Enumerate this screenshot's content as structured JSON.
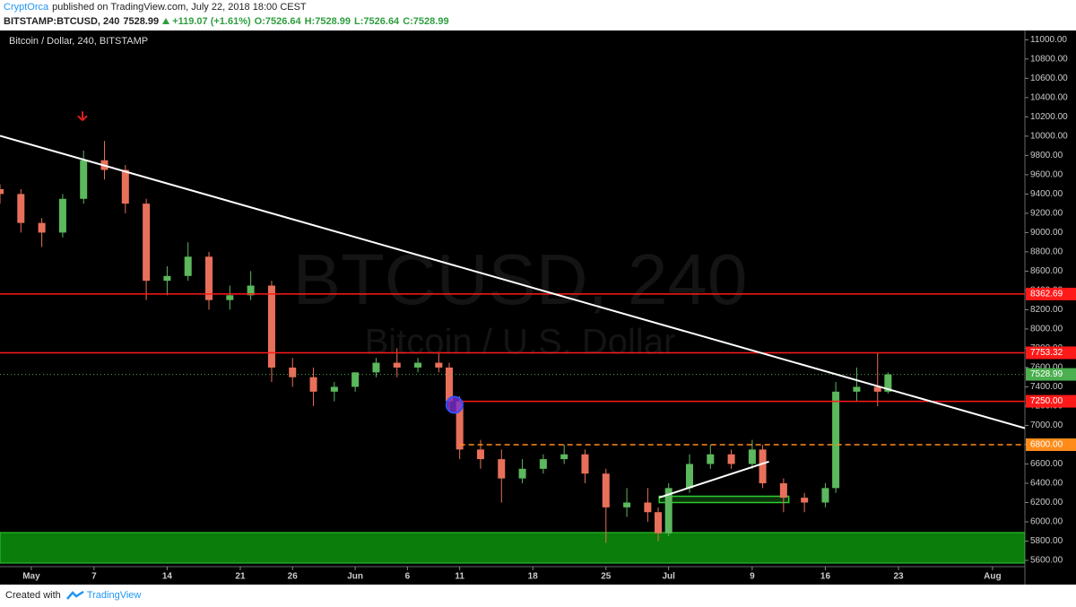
{
  "header": {
    "publisher": "CryptOrca",
    "published": "published on TradingView.com, July 22, 2018 18:00 CEST",
    "symbol": "BITSTAMP:BTCUSD, 240",
    "last": "7528.99",
    "change": "+119.07 (+1.61%)",
    "open": "O:7526.64",
    "high": "H:7528.99",
    "low": "L:7526.64",
    "close": "C:7528.99"
  },
  "footer": {
    "created": "Created with",
    "brand": "TradingView"
  },
  "chart_data": {
    "type": "candlestick",
    "legend_text": "Bitcoin / Dollar, 240, BITSTAMP",
    "watermark": {
      "symbol": "BTCUSD, 240",
      "description": "Bitcoin / U.S. Dollar"
    },
    "up_color": "#5cb85c",
    "down_color": "#e8705a",
    "grid": false,
    "xlim": [
      -3,
      95.1
    ],
    "xticks": [
      {
        "value": 0,
        "label": "May"
      },
      {
        "value": 6,
        "label": "7"
      },
      {
        "value": 13,
        "label": "14"
      },
      {
        "value": 20,
        "label": "21"
      },
      {
        "value": 25,
        "label": "26"
      },
      {
        "value": 31,
        "label": "Jun"
      },
      {
        "value": 36,
        "label": "6"
      },
      {
        "value": 41,
        "label": "11"
      },
      {
        "value": 48,
        "label": "18"
      },
      {
        "value": 55,
        "label": "25"
      },
      {
        "value": 61,
        "label": "Jul"
      },
      {
        "value": 69,
        "label": "9"
      },
      {
        "value": 76,
        "label": "16"
      },
      {
        "value": 83,
        "label": "23"
      },
      {
        "value": 92,
        "label": "Aug"
      }
    ],
    "ylim": [
      5535,
      11096
    ],
    "yticks": [
      {
        "value": 5600,
        "label": "5600.00"
      },
      {
        "value": 5800,
        "label": "5800.00"
      },
      {
        "value": 6000,
        "label": "6000.00"
      },
      {
        "value": 6200,
        "label": "6200.00"
      },
      {
        "value": 6400,
        "label": "6400.00"
      },
      {
        "value": 6600,
        "label": "6600.00"
      },
      {
        "value": 6800,
        "label": "6800.00"
      },
      {
        "value": 7000,
        "label": "7000.00"
      },
      {
        "value": 7200,
        "label": "7200.00"
      },
      {
        "value": 7400,
        "label": "7400.00"
      },
      {
        "value": 7600,
        "label": "7600.00"
      },
      {
        "value": 7800,
        "label": "7800.00"
      },
      {
        "value": 8000,
        "label": "8000.00"
      },
      {
        "value": 8200,
        "label": "8200.00"
      },
      {
        "value": 8400,
        "label": "8400.00"
      },
      {
        "value": 8600,
        "label": "8600.00"
      },
      {
        "value": 8800,
        "label": "8800.00"
      },
      {
        "value": 9000,
        "label": "9000.00"
      },
      {
        "value": 9200,
        "label": "9200.00"
      },
      {
        "value": 9400,
        "label": "9400.00"
      },
      {
        "value": 9600,
        "label": "9600.00"
      },
      {
        "value": 9800,
        "label": "9800.00"
      },
      {
        "value": 10000,
        "label": "10000.00"
      },
      {
        "value": 10200,
        "label": "10200.00"
      },
      {
        "value": 10400,
        "label": "10400.00"
      },
      {
        "value": 10600,
        "label": "10600.00"
      },
      {
        "value": 10800,
        "label": "10800.00"
      },
      {
        "value": 11000,
        "label": "11000.00"
      }
    ],
    "x": [
      -3,
      -1,
      1,
      3,
      5,
      7,
      9,
      11,
      13,
      15,
      17,
      19,
      21,
      23,
      25,
      27,
      29,
      31,
      33,
      35,
      37,
      39,
      40,
      41,
      43,
      45,
      47,
      49,
      51,
      53,
      55,
      57,
      59,
      60,
      61,
      63,
      65,
      67,
      69,
      70,
      72,
      74,
      76,
      77,
      79,
      81,
      82
    ],
    "open": [
      9450,
      9400,
      9100,
      9000,
      9350,
      9750,
      9650,
      9300,
      8500,
      8550,
      8750,
      8300,
      8350,
      8450,
      7600,
      7500,
      7350,
      7400,
      7550,
      7650,
      7600,
      7650,
      7600,
      7250,
      6750,
      6650,
      6450,
      6550,
      6650,
      6700,
      6500,
      6150,
      6200,
      6100,
      5880,
      6350,
      6600,
      6700,
      6600,
      6750,
      6400,
      6250,
      6200,
      6350,
      7350,
      7400,
      7350
    ],
    "high": [
      9500,
      9450,
      9150,
      9400,
      9850,
      9950,
      9700,
      9350,
      8650,
      8900,
      8800,
      8450,
      8600,
      8500,
      7700,
      7600,
      7450,
      7550,
      7700,
      7800,
      7700,
      7750,
      7650,
      7300,
      6850,
      6750,
      6650,
      6700,
      6800,
      6750,
      6550,
      6350,
      6350,
      6150,
      6400,
      6700,
      6800,
      6750,
      6850,
      6800,
      6450,
      6300,
      6400,
      7450,
      7600,
      7750,
      7550
    ],
    "low": [
      9300,
      9000,
      8850,
      8950,
      9300,
      9550,
      9200,
      8300,
      8350,
      8500,
      8200,
      8200,
      8300,
      7450,
      7400,
      7200,
      7250,
      7350,
      7500,
      7500,
      7550,
      7550,
      7150,
      6650,
      6550,
      6200,
      6400,
      6500,
      6600,
      6400,
      5780,
      6050,
      6000,
      5800,
      5850,
      6300,
      6550,
      6550,
      6550,
      6350,
      6100,
      6100,
      6150,
      6300,
      7250,
      7200,
      7330
    ],
    "close": [
      9400,
      9100,
      9000,
      9350,
      9750,
      9650,
      9300,
      8500,
      8550,
      8750,
      8300,
      8350,
      8450,
      7600,
      7500,
      7350,
      7400,
      7550,
      7650,
      7600,
      7650,
      7600,
      7250,
      6750,
      6650,
      6450,
      6550,
      6650,
      6700,
      6500,
      6150,
      6200,
      6100,
      5880,
      6350,
      6600,
      6700,
      6600,
      6750,
      6400,
      6250,
      6200,
      6350,
      7350,
      7400,
      7350,
      7529
    ],
    "last_price": {
      "value": 7528.99,
      "color": "#4caf50"
    },
    "horizontal_lines": [
      {
        "value": 8362.69,
        "color": "#ff1a1a",
        "style": "solid",
        "start": -3
      },
      {
        "value": 7753.32,
        "color": "#ff1a1a",
        "style": "solid",
        "start": -3
      },
      {
        "value": 7250,
        "label": "7250.00",
        "color": "#ff1a1a",
        "style": "solid",
        "start": 41
      },
      {
        "value": 6800,
        "label": "6800.00",
        "color": "#ff8c1a",
        "style": "dashed",
        "start": 41
      }
    ],
    "zone": {
      "y": [
        5572,
        5889
      ],
      "color": "#0b7d0b"
    },
    "box": {
      "x": [
        60.1,
        72.5
      ],
      "y": [
        6200,
        6265
      ],
      "color": "#2ecc2e"
    },
    "trend_lines": [
      {
        "x": [
          -3,
          95.1
        ],
        "y": [
          10004,
          6971
        ],
        "color": "#ffffff"
      },
      {
        "x": [
          60.1,
          70.6
        ],
        "y": [
          6252,
          6625
        ],
        "color": "#ffffff"
      }
    ],
    "markers": [
      {
        "x": 4.9,
        "y": 10210,
        "shape": "arrow-down",
        "color": "#e02020"
      },
      {
        "x": 40.5,
        "y": 7213,
        "shape": "circle",
        "color": "#7b2fd0"
      }
    ]
  }
}
